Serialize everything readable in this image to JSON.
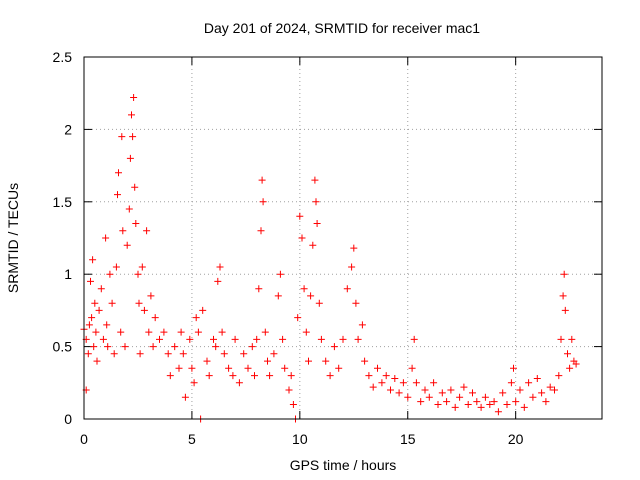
{
  "chart_data": {
    "type": "scatter",
    "title": "Day 201 of 2024, SRMTID for receiver mac1",
    "xlabel": "GPS time / hours",
    "ylabel": "SRMTID / TECUs",
    "xlim": [
      0,
      24
    ],
    "ylim": [
      0,
      2.5
    ],
    "xticks": [
      0,
      5,
      10,
      15,
      20
    ],
    "xtick_labels": [
      "0",
      "5",
      "10",
      "15",
      "20"
    ],
    "yticks": [
      0,
      0.5,
      1,
      1.5,
      2,
      2.5
    ],
    "ytick_labels": [
      "0",
      "0.5",
      "1",
      "1.5",
      "2",
      "2.5"
    ],
    "grid": true,
    "marker": "+",
    "marker_color": "#ff0000",
    "series": [
      {
        "name": "SRMTID",
        "points": [
          [
            0.0,
            0.62
          ],
          [
            0.1,
            0.2
          ],
          [
            0.1,
            0.55
          ],
          [
            0.2,
            0.45
          ],
          [
            0.25,
            0.65
          ],
          [
            0.3,
            0.95
          ],
          [
            0.35,
            0.7
          ],
          [
            0.4,
            1.1
          ],
          [
            0.45,
            0.5
          ],
          [
            0.5,
            0.8
          ],
          [
            0.55,
            0.6
          ],
          [
            0.6,
            0.4
          ],
          [
            0.7,
            0.75
          ],
          [
            0.8,
            0.9
          ],
          [
            0.9,
            0.55
          ],
          [
            1.0,
            1.25
          ],
          [
            1.05,
            0.65
          ],
          [
            1.1,
            0.5
          ],
          [
            1.2,
            1.0
          ],
          [
            1.3,
            0.8
          ],
          [
            1.4,
            0.45
          ],
          [
            1.5,
            1.05
          ],
          [
            1.55,
            1.55
          ],
          [
            1.6,
            1.7
          ],
          [
            1.7,
            0.6
          ],
          [
            1.75,
            1.95
          ],
          [
            1.8,
            1.3
          ],
          [
            1.9,
            0.5
          ],
          [
            2.0,
            1.2
          ],
          [
            2.1,
            1.45
          ],
          [
            2.15,
            1.8
          ],
          [
            2.2,
            2.1
          ],
          [
            2.25,
            1.95
          ],
          [
            2.3,
            2.22
          ],
          [
            2.35,
            1.6
          ],
          [
            2.4,
            1.35
          ],
          [
            2.5,
            1.0
          ],
          [
            2.55,
            0.8
          ],
          [
            2.6,
            0.45
          ],
          [
            2.7,
            1.05
          ],
          [
            2.8,
            0.75
          ],
          [
            2.9,
            1.3
          ],
          [
            3.0,
            0.6
          ],
          [
            3.1,
            0.85
          ],
          [
            3.2,
            0.5
          ],
          [
            3.3,
            0.7
          ],
          [
            3.5,
            0.55
          ],
          [
            3.7,
            0.6
          ],
          [
            3.9,
            0.45
          ],
          [
            4.0,
            0.3
          ],
          [
            4.2,
            0.5
          ],
          [
            4.4,
            0.35
          ],
          [
            4.5,
            0.6
          ],
          [
            4.6,
            0.45
          ],
          [
            4.7,
            0.15
          ],
          [
            4.9,
            0.55
          ],
          [
            5.0,
            0.35
          ],
          [
            5.1,
            0.25
          ],
          [
            5.2,
            0.7
          ],
          [
            5.3,
            0.6
          ],
          [
            5.4,
            0.0
          ],
          [
            5.5,
            0.75
          ],
          [
            5.7,
            0.4
          ],
          [
            5.8,
            0.3
          ],
          [
            6.0,
            0.55
          ],
          [
            6.1,
            0.5
          ],
          [
            6.2,
            0.95
          ],
          [
            6.3,
            1.05
          ],
          [
            6.4,
            0.6
          ],
          [
            6.5,
            0.45
          ],
          [
            6.7,
            0.35
          ],
          [
            6.9,
            0.3
          ],
          [
            7.0,
            0.55
          ],
          [
            7.2,
            0.25
          ],
          [
            7.4,
            0.45
          ],
          [
            7.6,
            0.35
          ],
          [
            7.8,
            0.5
          ],
          [
            7.9,
            0.3
          ],
          [
            8.0,
            0.55
          ],
          [
            8.1,
            0.9
          ],
          [
            8.2,
            1.3
          ],
          [
            8.25,
            1.65
          ],
          [
            8.3,
            1.5
          ],
          [
            8.4,
            0.6
          ],
          [
            8.5,
            0.4
          ],
          [
            8.6,
            0.3
          ],
          [
            8.8,
            0.45
          ],
          [
            9.0,
            0.85
          ],
          [
            9.1,
            1.0
          ],
          [
            9.2,
            0.55
          ],
          [
            9.3,
            0.35
          ],
          [
            9.5,
            0.2
          ],
          [
            9.6,
            0.3
          ],
          [
            9.7,
            0.1
          ],
          [
            9.8,
            0.0
          ],
          [
            9.9,
            0.7
          ],
          [
            10.0,
            1.4
          ],
          [
            10.1,
            1.25
          ],
          [
            10.2,
            0.9
          ],
          [
            10.3,
            0.6
          ],
          [
            10.4,
            0.4
          ],
          [
            10.5,
            0.85
          ],
          [
            10.6,
            1.2
          ],
          [
            10.7,
            1.65
          ],
          [
            10.75,
            1.5
          ],
          [
            10.8,
            1.35
          ],
          [
            10.9,
            0.8
          ],
          [
            11.0,
            0.55
          ],
          [
            11.2,
            0.4
          ],
          [
            11.4,
            0.3
          ],
          [
            11.6,
            0.5
          ],
          [
            11.8,
            0.35
          ],
          [
            12.0,
            0.55
          ],
          [
            12.2,
            0.9
          ],
          [
            12.4,
            1.05
          ],
          [
            12.5,
            1.18
          ],
          [
            12.6,
            0.8
          ],
          [
            12.7,
            0.55
          ],
          [
            12.9,
            0.65
          ],
          [
            13.0,
            0.4
          ],
          [
            13.2,
            0.3
          ],
          [
            13.4,
            0.22
          ],
          [
            13.6,
            0.35
          ],
          [
            13.8,
            0.25
          ],
          [
            14.0,
            0.3
          ],
          [
            14.2,
            0.2
          ],
          [
            14.4,
            0.28
          ],
          [
            14.6,
            0.18
          ],
          [
            14.8,
            0.25
          ],
          [
            15.0,
            0.15
          ],
          [
            15.2,
            0.35
          ],
          [
            15.3,
            0.55
          ],
          [
            15.4,
            0.25
          ],
          [
            15.6,
            0.12
          ],
          [
            15.8,
            0.2
          ],
          [
            16.0,
            0.15
          ],
          [
            16.2,
            0.25
          ],
          [
            16.4,
            0.1
          ],
          [
            16.6,
            0.18
          ],
          [
            16.8,
            0.12
          ],
          [
            17.0,
            0.2
          ],
          [
            17.2,
            0.08
          ],
          [
            17.4,
            0.15
          ],
          [
            17.6,
            0.22
          ],
          [
            17.8,
            0.1
          ],
          [
            18.0,
            0.18
          ],
          [
            18.2,
            0.12
          ],
          [
            18.4,
            0.08
          ],
          [
            18.6,
            0.15
          ],
          [
            18.8,
            0.1
          ],
          [
            19.0,
            0.12
          ],
          [
            19.2,
            0.05
          ],
          [
            19.4,
            0.18
          ],
          [
            19.6,
            0.1
          ],
          [
            19.8,
            0.25
          ],
          [
            19.9,
            0.35
          ],
          [
            20.0,
            0.12
          ],
          [
            20.2,
            0.2
          ],
          [
            20.4,
            0.08
          ],
          [
            20.6,
            0.25
          ],
          [
            20.8,
            0.15
          ],
          [
            21.0,
            0.28
          ],
          [
            21.2,
            0.18
          ],
          [
            21.4,
            0.12
          ],
          [
            21.6,
            0.22
          ],
          [
            21.8,
            0.2
          ],
          [
            22.0,
            0.3
          ],
          [
            22.1,
            0.55
          ],
          [
            22.2,
            0.85
          ],
          [
            22.25,
            1.0
          ],
          [
            22.3,
            0.75
          ],
          [
            22.4,
            0.45
          ],
          [
            22.5,
            0.35
          ],
          [
            22.6,
            0.55
          ],
          [
            22.7,
            0.4
          ],
          [
            22.8,
            0.38
          ]
        ]
      }
    ]
  }
}
